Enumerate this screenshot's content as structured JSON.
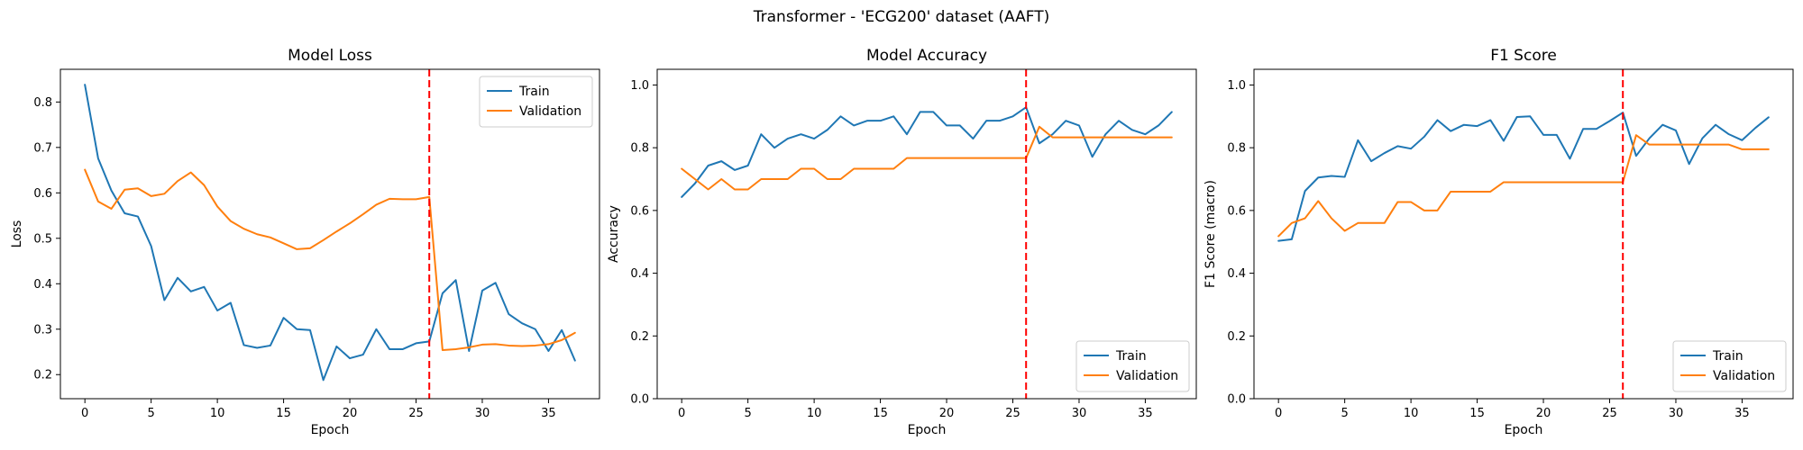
{
  "suptitle": "Transformer - 'ECG200' dataset (AAFT)",
  "colors": {
    "train": "#1f77b4",
    "validation": "#ff7f0e",
    "vline": "#ff0000"
  },
  "chart_data": [
    {
      "type": "line",
      "title": "Model Loss",
      "xlabel": "Epoch",
      "ylabel": "Loss",
      "xlim": [
        -1.85,
        38.85
      ],
      "ylim": [
        0.147,
        0.872
      ],
      "xticks": [
        0,
        5,
        10,
        15,
        20,
        25,
        30,
        35
      ],
      "yticks": [
        0.2,
        0.3,
        0.4,
        0.5,
        0.6,
        0.7,
        0.8
      ],
      "ytick_decimals": 1,
      "vline_x": 26,
      "legend_position": "upper right",
      "x": [
        0,
        1,
        2,
        3,
        4,
        5,
        6,
        7,
        8,
        9,
        10,
        11,
        12,
        13,
        14,
        15,
        16,
        17,
        18,
        19,
        20,
        21,
        22,
        23,
        24,
        25,
        26,
        27,
        28,
        29,
        30,
        31,
        32,
        33,
        34,
        35,
        36,
        37
      ],
      "series": [
        {
          "name": "Train",
          "values": [
            0.838,
            0.676,
            0.605,
            0.555,
            0.548,
            0.483,
            0.364,
            0.413,
            0.383,
            0.393,
            0.341,
            0.358,
            0.265,
            0.259,
            0.264,
            0.325,
            0.3,
            0.298,
            0.188,
            0.262,
            0.236,
            0.244,
            0.3,
            0.256,
            0.256,
            0.269,
            0.273,
            0.379,
            0.408,
            0.252,
            0.385,
            0.402,
            0.333,
            0.313,
            0.3,
            0.252,
            0.298,
            0.231
          ]
        },
        {
          "name": "Validation",
          "values": [
            0.651,
            0.581,
            0.565,
            0.607,
            0.61,
            0.593,
            0.598,
            0.626,
            0.645,
            0.617,
            0.57,
            0.538,
            0.521,
            0.509,
            0.502,
            0.489,
            0.476,
            0.478,
            0.496,
            0.515,
            0.533,
            0.553,
            0.574,
            0.587,
            0.586,
            0.586,
            0.591,
            0.254,
            0.256,
            0.26,
            0.266,
            0.267,
            0.264,
            0.263,
            0.264,
            0.267,
            0.276,
            0.292
          ]
        }
      ]
    },
    {
      "type": "line",
      "title": "Model Accuracy",
      "xlabel": "Epoch",
      "ylabel": "Accuracy",
      "xlim": [
        -1.85,
        38.85
      ],
      "ylim": [
        0.0,
        1.05
      ],
      "xticks": [
        0,
        5,
        10,
        15,
        20,
        25,
        30,
        35
      ],
      "yticks": [
        0.0,
        0.2,
        0.4,
        0.6,
        0.8,
        1.0
      ],
      "ytick_decimals": 1,
      "vline_x": 26,
      "legend_position": "lower right",
      "x": [
        0,
        1,
        2,
        3,
        4,
        5,
        6,
        7,
        8,
        9,
        10,
        11,
        12,
        13,
        14,
        15,
        16,
        17,
        18,
        19,
        20,
        21,
        22,
        23,
        24,
        25,
        26,
        27,
        28,
        29,
        30,
        31,
        32,
        33,
        34,
        35,
        36,
        37
      ],
      "series": [
        {
          "name": "Train",
          "values": [
            0.643,
            0.686,
            0.743,
            0.757,
            0.729,
            0.743,
            0.843,
            0.8,
            0.829,
            0.843,
            0.829,
            0.857,
            0.9,
            0.871,
            0.886,
            0.886,
            0.9,
            0.843,
            0.914,
            0.914,
            0.871,
            0.871,
            0.829,
            0.886,
            0.886,
            0.9,
            0.929,
            0.814,
            0.843,
            0.886,
            0.871,
            0.771,
            0.843,
            0.886,
            0.857,
            0.843,
            0.871,
            0.914
          ]
        },
        {
          "name": "Validation",
          "values": [
            0.733,
            0.7,
            0.667,
            0.7,
            0.667,
            0.667,
            0.7,
            0.7,
            0.7,
            0.733,
            0.733,
            0.7,
            0.7,
            0.733,
            0.733,
            0.733,
            0.733,
            0.767,
            0.767,
            0.767,
            0.767,
            0.767,
            0.767,
            0.767,
            0.767,
            0.767,
            0.767,
            0.867,
            0.833,
            0.833,
            0.833,
            0.833,
            0.833,
            0.833,
            0.833,
            0.833,
            0.833,
            0.833
          ]
        }
      ]
    },
    {
      "type": "line",
      "title": "F1 Score",
      "xlabel": "Epoch",
      "ylabel": "F1 Score (macro)",
      "xlim": [
        -1.85,
        38.85
      ],
      "ylim": [
        0.0,
        1.05
      ],
      "xticks": [
        0,
        5,
        10,
        15,
        20,
        25,
        30,
        35
      ],
      "yticks": [
        0.0,
        0.2,
        0.4,
        0.6,
        0.8,
        1.0
      ],
      "ytick_decimals": 1,
      "vline_x": 26,
      "legend_position": "lower right",
      "x": [
        0,
        1,
        2,
        3,
        4,
        5,
        6,
        7,
        8,
        9,
        10,
        11,
        12,
        13,
        14,
        15,
        16,
        17,
        18,
        19,
        20,
        21,
        22,
        23,
        24,
        25,
        26,
        27,
        28,
        29,
        30,
        31,
        32,
        33,
        34,
        35,
        36,
        37
      ],
      "series": [
        {
          "name": "Train",
          "values": [
            0.503,
            0.508,
            0.662,
            0.705,
            0.71,
            0.707,
            0.824,
            0.757,
            0.783,
            0.805,
            0.797,
            0.835,
            0.888,
            0.853,
            0.873,
            0.869,
            0.888,
            0.822,
            0.898,
            0.9,
            0.841,
            0.841,
            0.765,
            0.86,
            0.86,
            0.885,
            0.912,
            0.774,
            0.83,
            0.873,
            0.855,
            0.748,
            0.83,
            0.873,
            0.843,
            0.824,
            0.863,
            0.897
          ]
        },
        {
          "name": "Validation",
          "values": [
            0.518,
            0.56,
            0.575,
            0.63,
            0.575,
            0.535,
            0.56,
            0.56,
            0.56,
            0.627,
            0.627,
            0.6,
            0.6,
            0.66,
            0.66,
            0.66,
            0.66,
            0.69,
            0.69,
            0.69,
            0.69,
            0.69,
            0.69,
            0.69,
            0.69,
            0.69,
            0.69,
            0.84,
            0.81,
            0.81,
            0.81,
            0.81,
            0.81,
            0.81,
            0.81,
            0.795,
            0.795,
            0.795
          ]
        }
      ]
    }
  ]
}
